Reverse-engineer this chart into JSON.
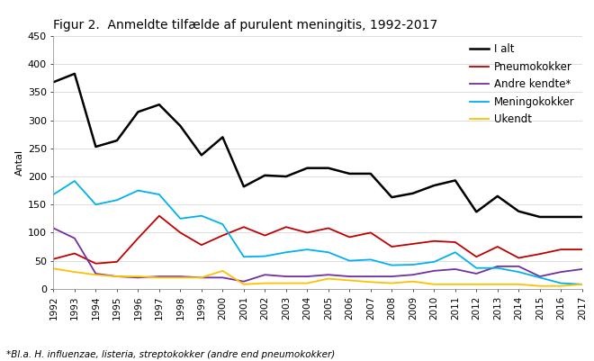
{
  "title": "Figur 2.  Anmeldte tilfælde af purulent meningitis, 1992-2017",
  "ylabel": "Antal",
  "footnote": "*Bl.a. H. influenzae, listeria, streptokokker (andre end pneumokokker)",
  "years": [
    1992,
    1993,
    1994,
    1995,
    1996,
    1997,
    1998,
    1999,
    2000,
    2001,
    2002,
    2003,
    2004,
    2005,
    2006,
    2007,
    2008,
    2009,
    2010,
    2011,
    2012,
    2013,
    2014,
    2015,
    2016,
    2017
  ],
  "series": [
    {
      "name": "I alt",
      "color": "#000000",
      "linewidth": 1.8,
      "values": [
        368,
        383,
        253,
        264,
        315,
        328,
        290,
        238,
        270,
        182,
        202,
        200,
        215,
        215,
        205,
        205,
        163,
        170,
        184,
        193,
        137,
        165,
        138,
        128,
        128,
        128
      ]
    },
    {
      "name": "Pneumokokker",
      "color": "#c00000",
      "linewidth": 1.3,
      "values": [
        53,
        63,
        45,
        48,
        90,
        130,
        100,
        78,
        95,
        110,
        95,
        110,
        100,
        108,
        92,
        100,
        75,
        80,
        85,
        83,
        57,
        75,
        55,
        62,
        70,
        70
      ]
    },
    {
      "name": "Andre kendte*",
      "color": "#7030a0",
      "linewidth": 1.3,
      "values": [
        108,
        90,
        27,
        22,
        20,
        22,
        22,
        20,
        20,
        13,
        25,
        22,
        22,
        25,
        22,
        22,
        22,
        25,
        32,
        35,
        27,
        40,
        40,
        22,
        30,
        35
      ]
    },
    {
      "name": "Meningokokker",
      "color": "#00b0f0",
      "linewidth": 1.3,
      "values": [
        168,
        192,
        150,
        158,
        175,
        168,
        125,
        130,
        115,
        57,
        58,
        65,
        70,
        65,
        50,
        52,
        42,
        43,
        48,
        65,
        37,
        37,
        30,
        20,
        10,
        8
      ]
    },
    {
      "name": "Ukendt",
      "color": "#ffc000",
      "linewidth": 1.3,
      "values": [
        36,
        30,
        25,
        22,
        22,
        20,
        20,
        20,
        32,
        8,
        10,
        10,
        10,
        18,
        15,
        12,
        10,
        13,
        8,
        8,
        8,
        8,
        8,
        5,
        5,
        8
      ]
    }
  ],
  "ylim": [
    0,
    450
  ],
  "yticks": [
    0,
    50,
    100,
    150,
    200,
    250,
    300,
    350,
    400,
    450
  ],
  "background_color": "#ffffff",
  "title_fontsize": 10,
  "axis_fontsize": 8,
  "legend_fontsize": 8.5,
  "footnote_fontsize": 7.5
}
